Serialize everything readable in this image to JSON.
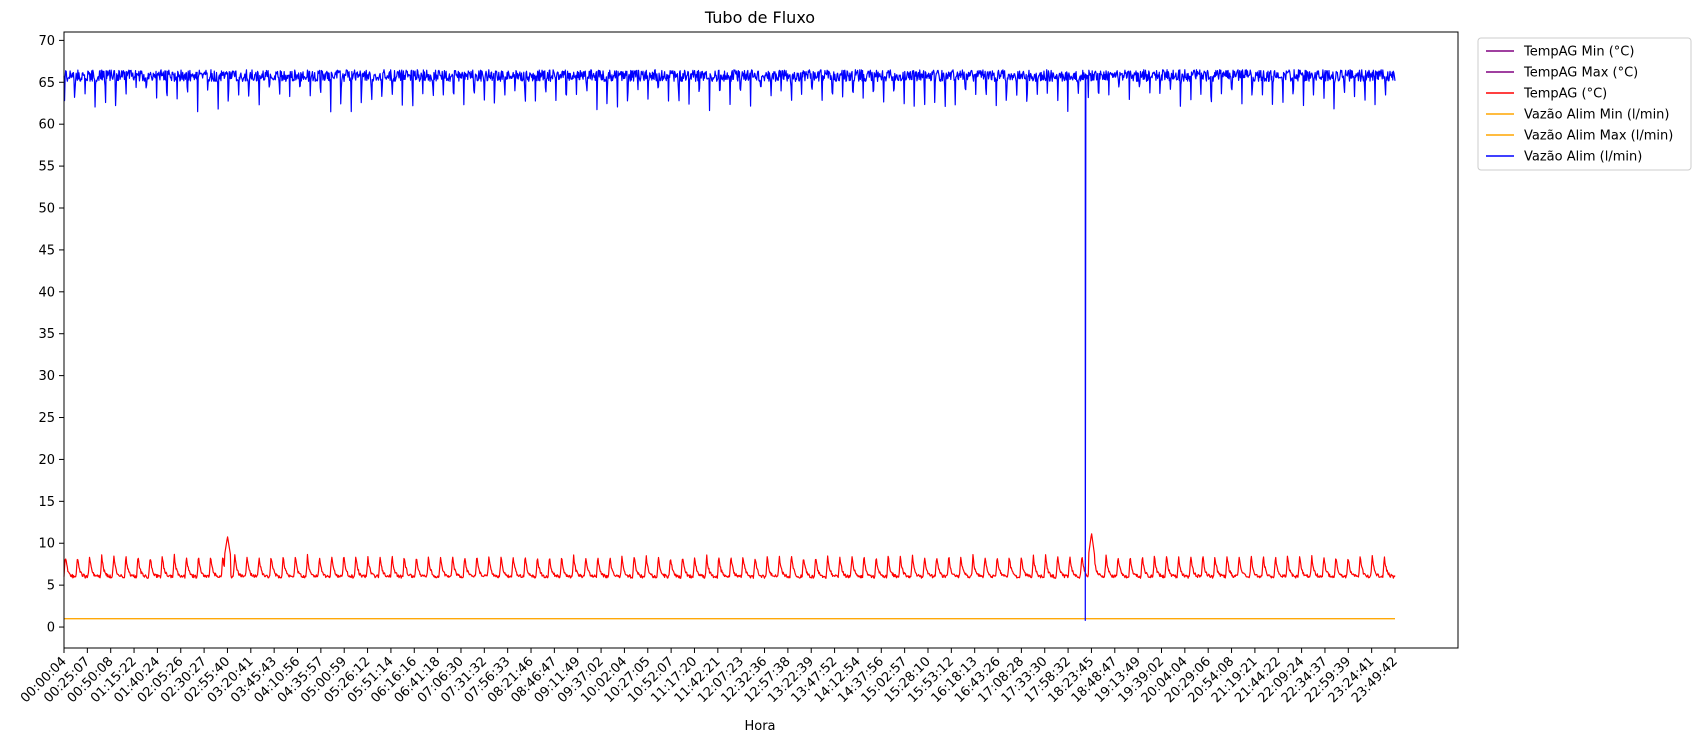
{
  "chart_data": {
    "type": "line",
    "title": "Tubo de Fluxo",
    "xlabel": "Hora",
    "ylabel": "",
    "ylim": [
      -2.5,
      71
    ],
    "y_ticks": [
      0,
      5,
      10,
      15,
      20,
      25,
      30,
      35,
      40,
      45,
      50,
      55,
      60,
      65,
      70
    ],
    "x_ticks": [
      "00:00:04",
      "00:25:07",
      "00:50:08",
      "01:15:22",
      "01:40:24",
      "02:05:26",
      "02:30:27",
      "02:55:40",
      "03:20:41",
      "03:45:43",
      "04:10:56",
      "04:35:57",
      "05:00:59",
      "05:26:12",
      "05:51:14",
      "06:16:16",
      "06:41:18",
      "07:06:30",
      "07:31:32",
      "07:56:33",
      "08:21:46",
      "08:46:47",
      "09:11:49",
      "09:37:02",
      "10:02:04",
      "10:27:05",
      "10:52:07",
      "11:17:20",
      "11:42:21",
      "12:07:23",
      "12:32:36",
      "12:57:38",
      "13:22:39",
      "13:47:52",
      "14:12:54",
      "14:37:56",
      "15:02:57",
      "15:28:10",
      "15:53:12",
      "16:18:13",
      "16:43:26",
      "17:08:28",
      "17:33:30",
      "17:58:32",
      "18:23:45",
      "18:48:47",
      "19:13:49",
      "19:39:02",
      "20:04:04",
      "20:29:06",
      "20:54:08",
      "21:19:21",
      "21:44:22",
      "22:09:24",
      "22:34:37",
      "22:59:39",
      "23:24:41",
      "23:49:42"
    ],
    "grid": false,
    "legend_position": "outside-top-right",
    "series": [
      {
        "name": "TempAG Min (°C)",
        "color": "#800080",
        "values": []
      },
      {
        "name": "TempAG Max (°C)",
        "color": "#800080",
        "values": []
      },
      {
        "name": "TempAG (°C)",
        "color": "#ff0000",
        "baseline": 6.0,
        "peak": 8.5,
        "cycles": 110,
        "spikes": [
          {
            "at": "02:55:40",
            "value": 10.8
          },
          {
            "at": "18:23:45",
            "value": 11.2
          }
        ]
      },
      {
        "name": "Vazão Alim Min (l/min)",
        "color": "#ffa500",
        "constant": 1.0
      },
      {
        "name": "Vazão Alim Max (l/min)",
        "color": "#ffa500",
        "constant": 1.0
      },
      {
        "name": "Vazão Alim (l/min)",
        "color": "#0000ff",
        "baseline": 65.8,
        "dip_to": 62.5,
        "cycles": 130,
        "dropout": {
          "at": "18:17:00",
          "value": 0.8
        }
      }
    ]
  }
}
